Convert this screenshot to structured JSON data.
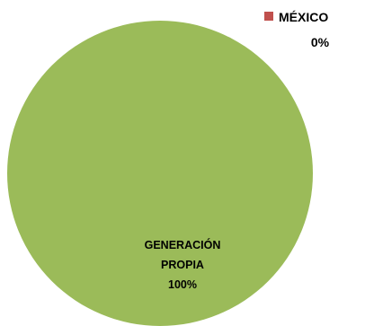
{
  "chart_data": {
    "type": "pie",
    "title": "",
    "slices": [
      {
        "name": "GENERACIÓN PROPIA",
        "line1": "GENERACIÓN",
        "line2": "PROPIA",
        "value": 100,
        "label": "100%",
        "color": "#9BBB59"
      },
      {
        "name": "MÉXICO",
        "line1": "MÉXICO",
        "value": 0,
        "label": "0%",
        "color": "#C0504D"
      }
    ]
  }
}
